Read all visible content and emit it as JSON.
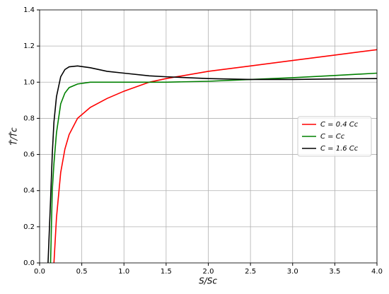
{
  "chart_data": {
    "type": "line",
    "xlabel": "S/Sc",
    "ylabel": "T̂/T̂c",
    "x": [
      0.1,
      0.13,
      0.15,
      0.17,
      0.2,
      0.25,
      0.3,
      0.35,
      0.45,
      0.6,
      0.8,
      1.0,
      1.3,
      1.5,
      2.0,
      2.5,
      3.0,
      3.5,
      4.0
    ],
    "series": [
      {
        "name": "C = 0.4 Cc",
        "color": "#ff0000",
        "values": [
          null,
          null,
          null,
          0,
          0.25,
          0.5,
          0.63,
          0.71,
          0.8,
          0.86,
          0.91,
          0.95,
          1.0,
          1.02,
          1.06,
          1.09,
          1.12,
          1.15,
          1.18
        ]
      },
      {
        "name": "C = Cc",
        "color": "#008000",
        "values": [
          null,
          0,
          0.4,
          0.55,
          0.72,
          0.88,
          0.94,
          0.97,
          0.99,
          1.0,
          1.0,
          1.0,
          1.0,
          1.0,
          1.005,
          1.015,
          1.025,
          1.037,
          1.05
        ]
      },
      {
        "name": "C = 1.6 Cc",
        "color": "#000000",
        "values": [
          0,
          0.35,
          0.6,
          0.78,
          0.92,
          1.03,
          1.07,
          1.085,
          1.09,
          1.08,
          1.06,
          1.05,
          1.035,
          1.03,
          1.02,
          1.015,
          1.015,
          1.018,
          1.02
        ]
      }
    ],
    "xlim": [
      0,
      4
    ],
    "ylim": [
      0,
      1.4
    ],
    "xticks": [
      {
        "value": 0,
        "label": "0.0"
      },
      0.5,
      {
        "value": 1,
        "label": "1.0"
      },
      1.5,
      {
        "value": 2,
        "label": "2.0"
      },
      2.5,
      {
        "value": 3,
        "label": "3.0"
      },
      3.5,
      {
        "value": 4,
        "label": "4.0"
      }
    ],
    "yticks": [
      {
        "value": 0,
        "label": "0.0"
      },
      0.2,
      0.4,
      0.6,
      0.8,
      {
        "value": 1,
        "label": "1.0"
      },
      1.2,
      1.4
    ],
    "grid": true,
    "legend": "center right"
  }
}
